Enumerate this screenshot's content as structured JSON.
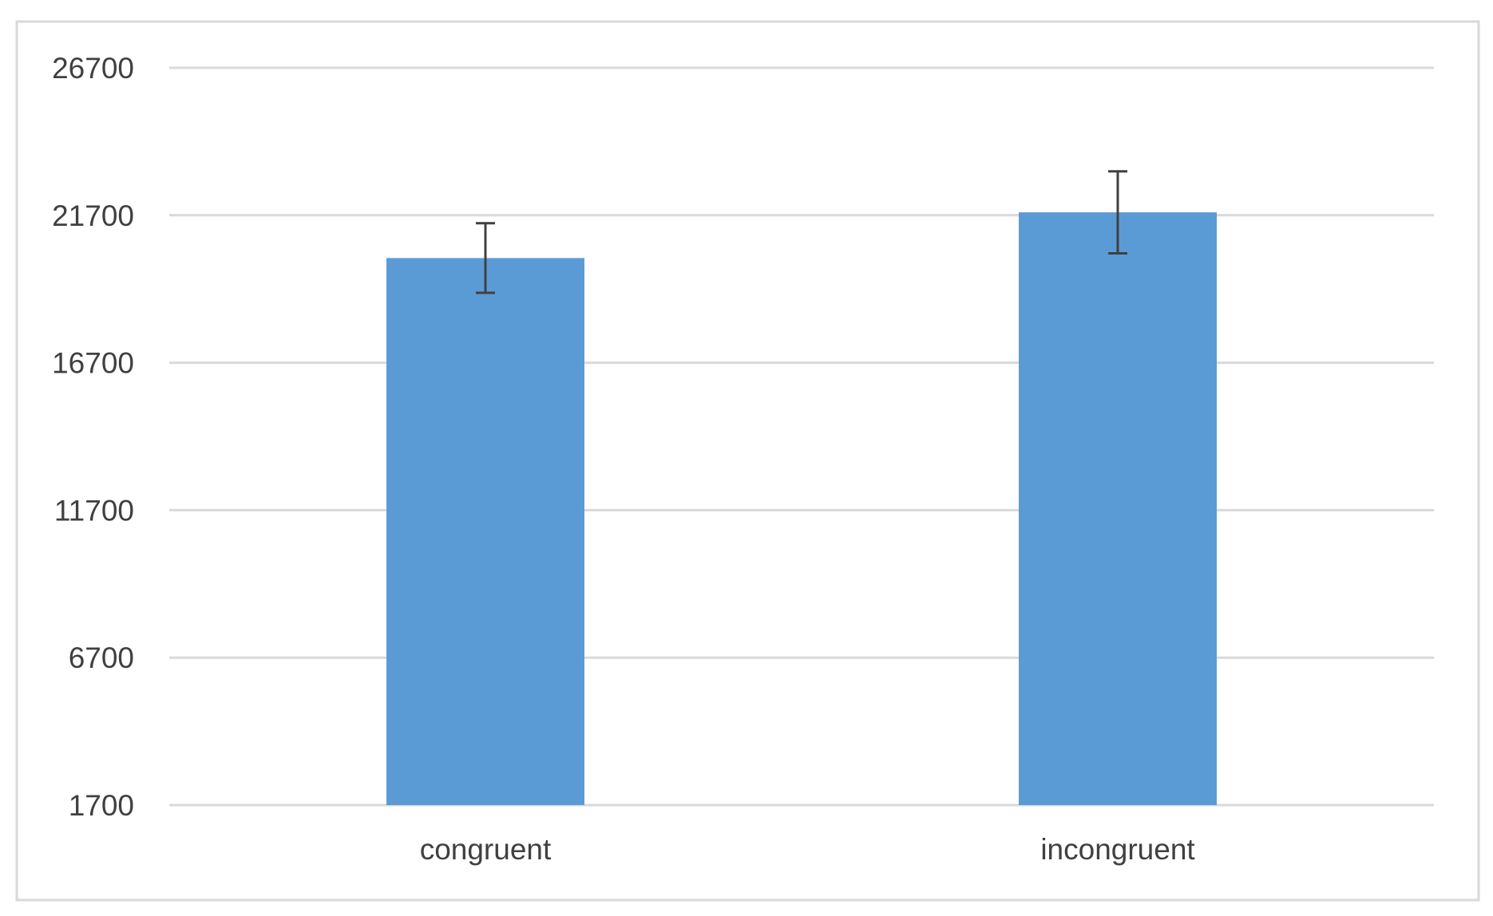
{
  "chart_data": {
    "type": "bar",
    "title": "",
    "xlabel": "",
    "ylabel": "",
    "categories": [
      "congruent",
      "incongruent"
    ],
    "series": [
      {
        "values": [
          20250,
          21800
        ],
        "error": [
          1180,
          1390
        ]
      }
    ],
    "ylim": [
      1700,
      26700
    ],
    "yticks": [
      1700,
      6700,
      11700,
      16700,
      21700,
      26700
    ],
    "ytick_labels": [
      "1700",
      "6700",
      "11700",
      "16700",
      "21700",
      "26700"
    ],
    "grid": true,
    "legend": "none",
    "colors": {
      "bar": "#5b9bd5",
      "gridline": "#d9d9d9",
      "error_bar": "#404040",
      "text": "#404040",
      "border": "#d9d9d9"
    }
  }
}
